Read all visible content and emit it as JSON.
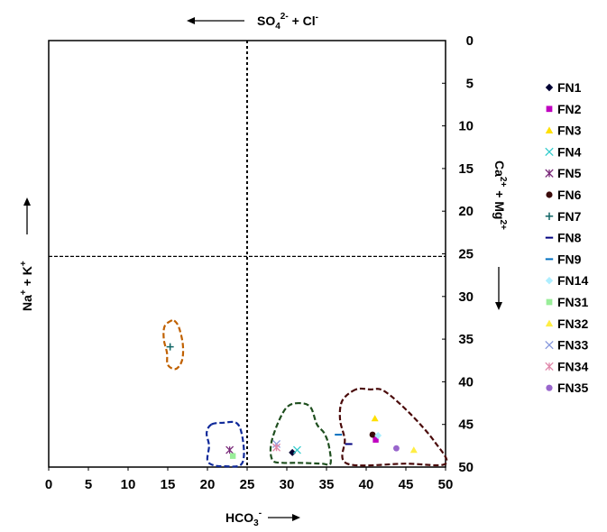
{
  "chart_data": {
    "type": "scatter",
    "title": "",
    "top_label": {
      "base": "SO",
      "sub": "4",
      "sup": "2-",
      "rest": " + Cl",
      "sup2": "-"
    },
    "bottom_label": {
      "base": "HCO",
      "sub": "3",
      "sup": "-"
    },
    "left_label": {
      "text": "Na",
      "sup": "+",
      "rest": " + K",
      "sup2": "+"
    },
    "right_label": {
      "text": "Ca",
      "sup": "2+",
      "rest": " + Mg",
      "sup2": "2+"
    },
    "x_axis": {
      "min": 0,
      "max": 50,
      "ticks": [
        0,
        5,
        10,
        15,
        20,
        25,
        30,
        35,
        40,
        45,
        50
      ]
    },
    "y_axis": {
      "min": 0,
      "max": 50,
      "reversed": true,
      "position": "right",
      "ticks": [
        0,
        5,
        10,
        15,
        20,
        25,
        30,
        35,
        40,
        45,
        50
      ]
    },
    "divider_x": 25,
    "divider_y": 25.3,
    "series": [
      {
        "name": "FN1",
        "marker": "diamond",
        "color": "#000033",
        "x": 30.7,
        "y": 48.3
      },
      {
        "name": "FN2",
        "marker": "square",
        "color": "#c000c0",
        "x": 41.2,
        "y": 46.8
      },
      {
        "name": "FN3",
        "marker": "triangle",
        "color": "#ffe000",
        "x": 41.1,
        "y": 44.3
      },
      {
        "name": "FN4",
        "marker": "x",
        "color": "#33cccc",
        "x": 31.3,
        "y": 48.0
      },
      {
        "name": "FN5",
        "marker": "asterisk",
        "color": "#7a2a7a",
        "x": 22.8,
        "y": 48.0
      },
      {
        "name": "FN6",
        "marker": "circle",
        "color": "#3a0a0a",
        "x": 40.8,
        "y": 46.2
      },
      {
        "name": "FN7",
        "marker": "plus",
        "color": "#116666",
        "x": 15.3,
        "y": 35.9
      },
      {
        "name": "FN8",
        "marker": "dash",
        "color": "#000080",
        "x": 37.8,
        "y": 47.3
      },
      {
        "name": "FN9",
        "marker": "dash",
        "color": "#0070c0",
        "x": 36.5,
        "y": 46.2
      },
      {
        "name": "FN14",
        "marker": "diamond",
        "color": "#aeeeff",
        "x": 41.5,
        "y": 46.3
      },
      {
        "name": "FN31",
        "marker": "square",
        "color": "#99ee99",
        "x": 23.2,
        "y": 48.7
      },
      {
        "name": "FN32",
        "marker": "triangle",
        "color": "#ffee44",
        "x": 46.0,
        "y": 48.0
      },
      {
        "name": "FN33",
        "marker": "x",
        "color": "#8899dd",
        "x": 28.7,
        "y": 47.3
      },
      {
        "name": "FN34",
        "marker": "asterisk",
        "color": "#e088aa",
        "x": 28.7,
        "y": 47.7
      },
      {
        "name": "FN35",
        "marker": "circle",
        "color": "#9966cc",
        "x": 43.8,
        "y": 47.8
      }
    ],
    "groups": [
      {
        "color": "#c06000",
        "points": [
          [
            15.5,
            32.8
          ],
          [
            14.6,
            33.5
          ],
          [
            14.5,
            35.0
          ],
          [
            14.9,
            36.6
          ],
          [
            15.0,
            38.0
          ],
          [
            16.0,
            38.5
          ],
          [
            16.8,
            37.5
          ],
          [
            16.9,
            35.6
          ],
          [
            16.4,
            33.6
          ],
          [
            15.8,
            32.8
          ]
        ]
      },
      {
        "color": "#102a9a",
        "points": [
          [
            20.5,
            45.0
          ],
          [
            19.9,
            46.0
          ],
          [
            20.2,
            47.5
          ],
          [
            20.0,
            49.2
          ],
          [
            20.8,
            49.8
          ],
          [
            22.2,
            49.9
          ],
          [
            24.1,
            49.8
          ],
          [
            24.6,
            48.5
          ],
          [
            24.3,
            46.0
          ],
          [
            23.6,
            44.8
          ],
          [
            22.0,
            44.8
          ]
        ]
      },
      {
        "color": "#1f4f1f",
        "points": [
          [
            31.7,
            42.5
          ],
          [
            30.1,
            42.9
          ],
          [
            28.9,
            44.8
          ],
          [
            28.0,
            47.4
          ],
          [
            28.2,
            49.2
          ],
          [
            29.5,
            49.5
          ],
          [
            31.5,
            49.5
          ],
          [
            34.4,
            49.6
          ],
          [
            35.5,
            49.6
          ],
          [
            35.3,
            47.5
          ],
          [
            34.7,
            46.0
          ],
          [
            33.8,
            45.0
          ],
          [
            33.0,
            43.0
          ]
        ]
      },
      {
        "color": "#4a0a0a",
        "points": [
          [
            38.7,
            40.9
          ],
          [
            37.0,
            42.2
          ],
          [
            36.7,
            44.4
          ],
          [
            37.3,
            46.7
          ],
          [
            37.6,
            49.6
          ],
          [
            45.0,
            49.6
          ],
          [
            50.0,
            49.6
          ],
          [
            48.6,
            47.0
          ],
          [
            45.6,
            43.8
          ],
          [
            42.3,
            41.1
          ],
          [
            40.5,
            40.9
          ]
        ]
      }
    ]
  }
}
